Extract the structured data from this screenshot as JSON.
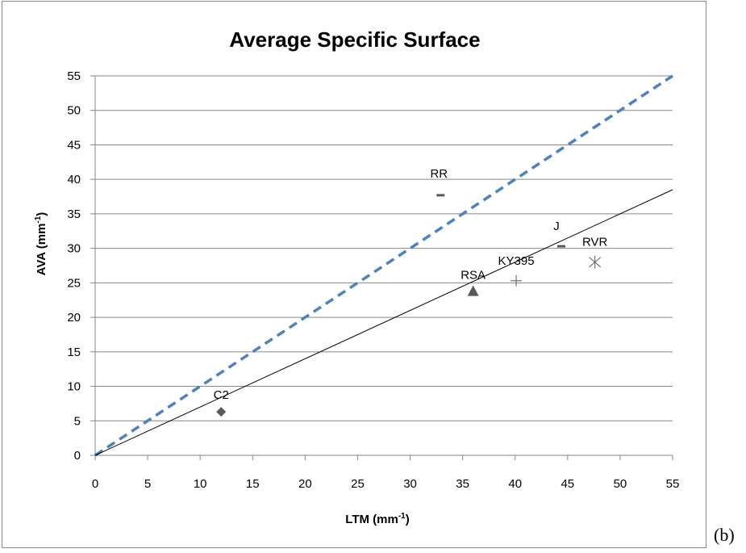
{
  "panel_label": "(b)",
  "chart_data": {
    "type": "scatter",
    "title": "Average Specific Surface",
    "xlabel": "LTM (mm",
    "xlabel_sup": "-1",
    "xlabel_end": ")",
    "ylabel": "AVA (mm",
    "ylabel_sup": "-1",
    "ylabel_end": ")",
    "xlim": [
      0,
      55
    ],
    "ylim": [
      0,
      55
    ],
    "xticks": [
      0,
      5,
      10,
      15,
      20,
      25,
      30,
      35,
      40,
      45,
      50,
      55
    ],
    "yticks": [
      0,
      5,
      10,
      15,
      20,
      25,
      30,
      35,
      40,
      45,
      50,
      55
    ],
    "grid": "horizontal",
    "points": [
      {
        "label": "C2",
        "x": 12.0,
        "y": 6.3,
        "marker": "diamond"
      },
      {
        "label": "RR",
        "x": 32.9,
        "y": 37.7,
        "marker": "dash"
      },
      {
        "label": "RSA",
        "x": 36.0,
        "y": 23.8,
        "marker": "triangle"
      },
      {
        "label": "KY395",
        "x": 40.1,
        "y": 25.3,
        "marker": "plus"
      },
      {
        "label": "J",
        "x": 44.4,
        "y": 30.3,
        "marker": "dash"
      },
      {
        "label": "RVR",
        "x": 47.6,
        "y": 28.0,
        "marker": "asterisk"
      }
    ],
    "lines": [
      {
        "style": "dashed",
        "color": "#4f81bd",
        "x": [
          0,
          55
        ],
        "y": [
          0,
          55
        ]
      },
      {
        "style": "solid",
        "color": "#000000",
        "x": [
          0,
          55
        ],
        "y": [
          0,
          38.5
        ]
      }
    ],
    "colors": {
      "marker": "#595959",
      "grid": "#868686",
      "dashed_line": "#4f81bd"
    }
  }
}
